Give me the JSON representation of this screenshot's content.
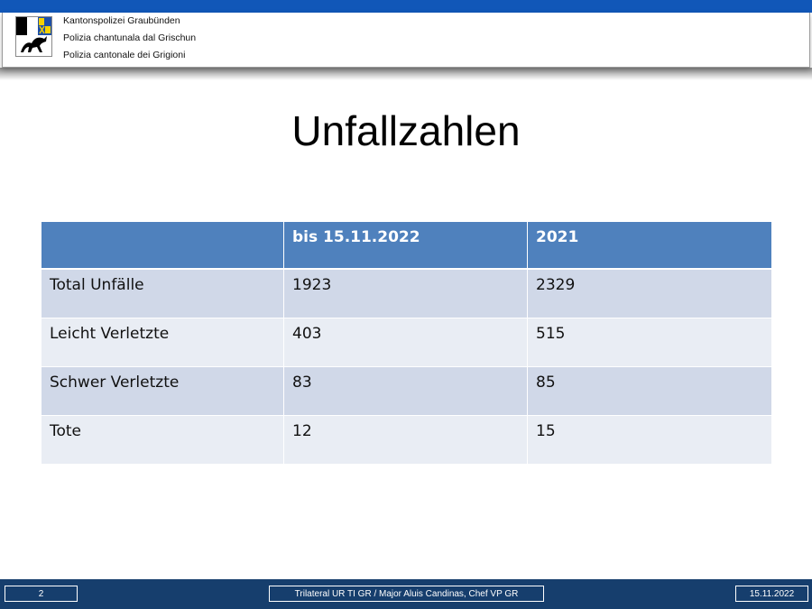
{
  "header": {
    "org_lines": [
      "Kantonspolizei Graubünden",
      "Polizia chantunala dal Grischun",
      "Polizia cantonale dei Grigioni"
    ],
    "crest_colors": {
      "black": "#000000",
      "white": "#ffffff",
      "blue": "#1d4fa8",
      "yellow": "#f4d100",
      "grey": "#8a8a8a"
    }
  },
  "slide": {
    "title": "Unfallzahlen"
  },
  "table": {
    "headers": [
      "",
      "bis 15.11.2022",
      "2021"
    ],
    "rows": [
      [
        "Total Unfälle",
        "1923",
        "2329"
      ],
      [
        "Leicht Verletzte",
        "403",
        "515"
      ],
      [
        "Schwer Verletzte",
        "83",
        "85"
      ],
      [
        "Tote",
        "12",
        "15"
      ]
    ]
  },
  "footer": {
    "page_number": "2",
    "presenter": "Trilateral UR  TI GR / Major  Aluis Candinas, Chef VP GR",
    "date": "15.11.2022"
  }
}
